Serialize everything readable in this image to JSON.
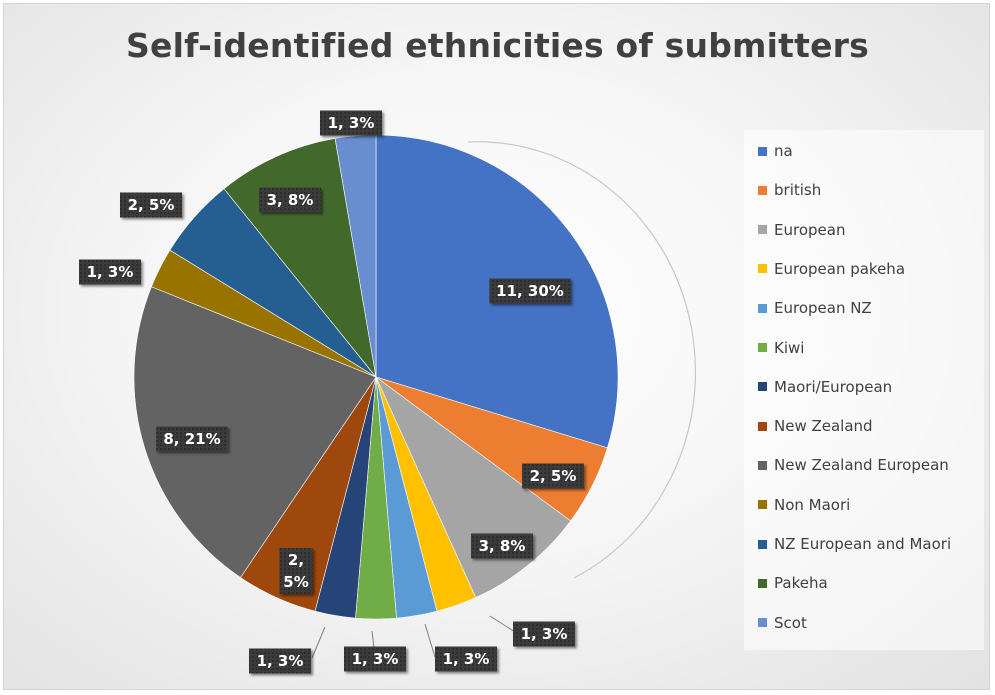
{
  "chart_data": {
    "type": "pie",
    "title": "Self-identified ethnicities of submitters",
    "legend_position": "right",
    "slices": [
      {
        "label": "na",
        "value": 11,
        "percent": "30%",
        "color": "#4472C4"
      },
      {
        "label": "british",
        "value": 2,
        "percent": "5%",
        "color": "#ED7D31"
      },
      {
        "label": "European",
        "value": 3,
        "percent": "8%",
        "color": "#A5A5A5"
      },
      {
        "label": "European pakeha",
        "value": 1,
        "percent": "3%",
        "color": "#FFC000"
      },
      {
        "label": "European NZ",
        "value": 1,
        "percent": "3%",
        "color": "#5B9BD5"
      },
      {
        "label": "Kiwi",
        "value": 1,
        "percent": "3%",
        "color": "#70AD47"
      },
      {
        "label": "Maori/European",
        "value": 1,
        "percent": "3%",
        "color": "#264478"
      },
      {
        "label": "New Zealand",
        "value": 2,
        "percent": "5%",
        "color": "#9E480E"
      },
      {
        "label": "New Zealand European",
        "value": 8,
        "percent": "21%",
        "color": "#636363"
      },
      {
        "label": "Non Maori",
        "value": 1,
        "percent": "3%",
        "color": "#997300"
      },
      {
        "label": "NZ European and Maori",
        "value": 2,
        "percent": "5%",
        "color": "#255E91"
      },
      {
        "label": "Pakeha",
        "value": 3,
        "percent": "8%",
        "color": "#43682B"
      },
      {
        "label": "Scot",
        "value": 1,
        "percent": "3%",
        "color": "#698ED0"
      }
    ]
  }
}
